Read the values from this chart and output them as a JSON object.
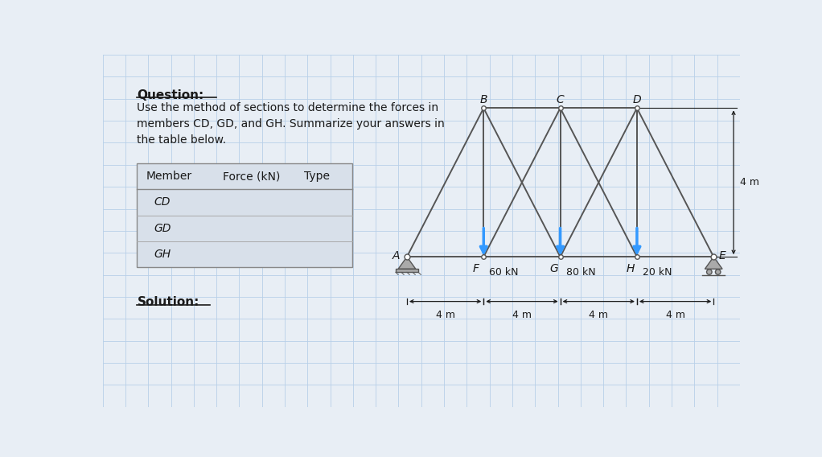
{
  "bg_color": "#e8eef5",
  "grid_color": "#b8cfe8",
  "text_color": "#1a1a1a",
  "question_title": "Question:",
  "question_body": "Use the method of sections to determine the forces in\nmembers CD, GD, and GH. Summarize your answers in\nthe table below.",
  "solution_title": "Solution:",
  "table_headers": [
    "Member",
    "Force (kN)",
    "Type"
  ],
  "table_rows": [
    "CD",
    "GD",
    "GH"
  ],
  "table_bg": "#d8e0ea",
  "truss_members": [
    [
      "A",
      "B"
    ],
    [
      "A",
      "F"
    ],
    [
      "B",
      "F"
    ],
    [
      "B",
      "C"
    ],
    [
      "B",
      "G"
    ],
    [
      "C",
      "F"
    ],
    [
      "C",
      "G"
    ],
    [
      "C",
      "D"
    ],
    [
      "C",
      "H"
    ],
    [
      "D",
      "G"
    ],
    [
      "D",
      "H"
    ],
    [
      "D",
      "E"
    ],
    [
      "E",
      "H"
    ],
    [
      "F",
      "G"
    ],
    [
      "G",
      "H"
    ]
  ],
  "load_nodes": [
    "F",
    "G",
    "H"
  ],
  "load_labels": [
    "60 kN",
    "80 kN",
    "20 kN"
  ],
  "dim_labels": [
    "4 m",
    "4 m",
    "4 m",
    "4 m"
  ],
  "height_label": "4 m",
  "arrow_color": "#3399ff",
  "member_color": "#555555",
  "support_color": "#aaaaaa"
}
